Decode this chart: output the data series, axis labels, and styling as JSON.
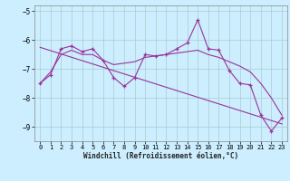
{
  "xlabel": "Windchill (Refroidissement éolien,°C)",
  "bg_color": "#cceeff",
  "grid_color": "#aacccc",
  "line_color": "#993399",
  "x_values": [
    0,
    1,
    2,
    3,
    4,
    5,
    6,
    7,
    8,
    9,
    10,
    11,
    12,
    13,
    14,
    15,
    16,
    17,
    18,
    19,
    20,
    21,
    22,
    23
  ],
  "y_main": [
    -7.5,
    -7.2,
    -6.3,
    -6.2,
    -6.4,
    -6.3,
    -6.7,
    -7.3,
    -7.6,
    -7.3,
    -6.5,
    -6.55,
    -6.5,
    -6.3,
    -6.1,
    -5.3,
    -6.3,
    -6.35,
    -7.05,
    -7.5,
    -7.55,
    -8.6,
    -9.15,
    -8.7
  ],
  "y_smooth": [
    -7.5,
    -7.1,
    -6.5,
    -6.35,
    -6.5,
    -6.5,
    -6.7,
    -6.85,
    -6.8,
    -6.75,
    -6.6,
    -6.55,
    -6.5,
    -6.45,
    -6.4,
    -6.35,
    -6.5,
    -6.6,
    -6.75,
    -6.9,
    -7.1,
    -7.5,
    -8.0,
    -8.6
  ],
  "trend_x": [
    0,
    23
  ],
  "trend_y": [
    -6.25,
    -8.9
  ],
  "ylim": [
    -9.5,
    -4.8
  ],
  "xlim": [
    -0.5,
    23.5
  ],
  "yticks": [
    -9,
    -8,
    -7,
    -6,
    -5
  ],
  "xticks": [
    0,
    1,
    2,
    3,
    4,
    5,
    6,
    7,
    8,
    9,
    10,
    11,
    12,
    13,
    14,
    15,
    16,
    17,
    18,
    19,
    20,
    21,
    22,
    23
  ]
}
